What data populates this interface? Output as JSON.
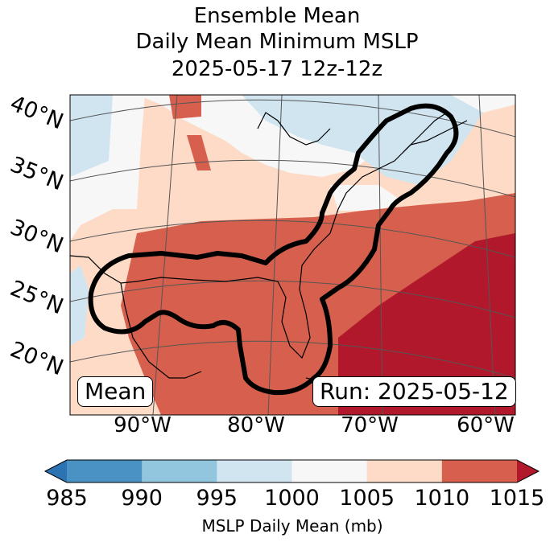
{
  "title": {
    "line1": "Ensemble Mean",
    "line2": "Daily Mean Minimum MSLP",
    "line3": "2025-05-17 12z-12z"
  },
  "map": {
    "lat_labels": [
      "40°N",
      "35°N",
      "30°N",
      "25°N",
      "20°N"
    ],
    "lon_labels": [
      "90°W",
      "80°W",
      "70°W",
      "60°W"
    ],
    "badge_left": "Mean",
    "badge_right": "Run: 2025-05-12"
  },
  "colorbar": {
    "ticks": [
      "985",
      "990",
      "995",
      "1000",
      "1005",
      "1010",
      "1015"
    ],
    "label": "MSLP Daily Mean (mb)",
    "colors": [
      "#2c73b4",
      "#4a91c4",
      "#92c5de",
      "#d1e5f0",
      "#f7f7f7",
      "#fddbc7",
      "#d6604d",
      "#b2182b"
    ]
  }
}
